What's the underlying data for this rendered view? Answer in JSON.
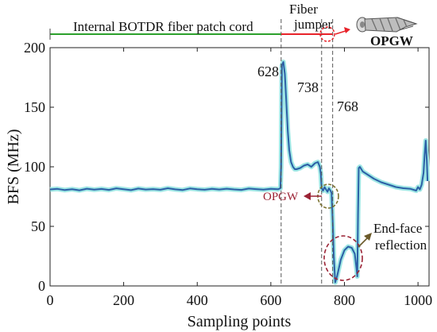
{
  "chart_data": {
    "type": "line",
    "xlabel": "Sampling points",
    "ylabel": "BFS (MHz)",
    "xlim": [
      0,
      1030
    ],
    "ylim": [
      0,
      200
    ],
    "xticks": [
      0,
      200,
      400,
      600,
      800,
      1000
    ],
    "yticks": [
      0,
      50,
      100,
      150,
      200
    ],
    "grid": false,
    "colors": {
      "bfs": "#2b5fa6",
      "bfs_band": "#9ee6e4",
      "patch_cord": "#2ca02c",
      "jumper": "#e8232a",
      "reflection_ring": "#9b2335",
      "opgw_ring": "#7d7432",
      "arrow": "#6b5a2a"
    },
    "series": [
      {
        "values": [
          [
            0,
            81
          ],
          [
            20,
            81.5
          ],
          [
            40,
            80.5
          ],
          [
            60,
            81.2
          ],
          [
            80,
            80.3
          ],
          [
            100,
            81.6
          ],
          [
            120,
            80.8
          ],
          [
            140,
            81.4
          ],
          [
            160,
            80.6
          ],
          [
            180,
            81.9
          ],
          [
            200,
            81.2
          ],
          [
            220,
            80.4
          ],
          [
            240,
            81.7
          ],
          [
            260,
            80.9
          ],
          [
            280,
            81.3
          ],
          [
            300,
            80.7
          ],
          [
            320,
            82
          ],
          [
            340,
            81.1
          ],
          [
            360,
            80.5
          ],
          [
            380,
            81.8
          ],
          [
            400,
            81.2
          ],
          [
            420,
            80.7
          ],
          [
            440,
            81.5
          ],
          [
            460,
            80.9
          ],
          [
            480,
            81.6
          ],
          [
            500,
            81
          ],
          [
            520,
            80.6
          ],
          [
            540,
            81.7
          ],
          [
            560,
            81.3
          ],
          [
            580,
            80.8
          ],
          [
            600,
            81.5
          ],
          [
            620,
            81.2
          ],
          [
            626,
            82
          ],
          [
            628,
            100
          ],
          [
            630,
            185
          ],
          [
            634,
            188
          ],
          [
            638,
            178
          ],
          [
            642,
            155
          ],
          [
            646,
            130
          ],
          [
            650,
            114
          ],
          [
            655,
            104
          ],
          [
            660,
            100
          ],
          [
            665,
            98
          ],
          [
            670,
            98
          ],
          [
            680,
            99
          ],
          [
            690,
            101
          ],
          [
            700,
            102
          ],
          [
            710,
            100
          ],
          [
            720,
            103
          ],
          [
            728,
            104
          ],
          [
            733,
            100
          ],
          [
            736,
            94
          ],
          [
            738,
            82
          ],
          [
            742,
            80
          ],
          [
            746,
            83
          ],
          [
            750,
            81
          ],
          [
            754,
            79
          ],
          [
            758,
            82
          ],
          [
            762,
            80
          ],
          [
            765,
            78
          ],
          [
            768,
            55
          ],
          [
            771,
            25
          ],
          [
            775,
            3
          ],
          [
            780,
            8
          ],
          [
            790,
            22
          ],
          [
            800,
            30
          ],
          [
            810,
            33
          ],
          [
            820,
            32
          ],
          [
            828,
            27
          ],
          [
            833,
            14
          ],
          [
            835,
            8
          ],
          [
            837,
            60
          ],
          [
            839,
            99
          ],
          [
            842,
            100
          ],
          [
            850,
            96
          ],
          [
            860,
            94
          ],
          [
            880,
            90
          ],
          [
            900,
            87
          ],
          [
            920,
            85
          ],
          [
            940,
            83
          ],
          [
            960,
            82
          ],
          [
            980,
            81.5
          ],
          [
            995,
            80
          ],
          [
            1000,
            83
          ],
          [
            1005,
            81
          ],
          [
            1010,
            85
          ],
          [
            1015,
            95
          ],
          [
            1018,
            110
          ],
          [
            1021,
            122
          ],
          [
            1024,
            105
          ],
          [
            1026,
            88
          ]
        ]
      }
    ],
    "vlines": [
      628,
      738,
      768
    ],
    "vline_labels": [
      "628",
      "738",
      "768"
    ],
    "annotations": {
      "patch_cord": "Internal BOTDR fiber patch cord",
      "jumper": "Fiber\njumper",
      "opgw_top": "OPGW",
      "opgw_mid": "OPGW",
      "reflection": "End-face\nreflection"
    }
  }
}
